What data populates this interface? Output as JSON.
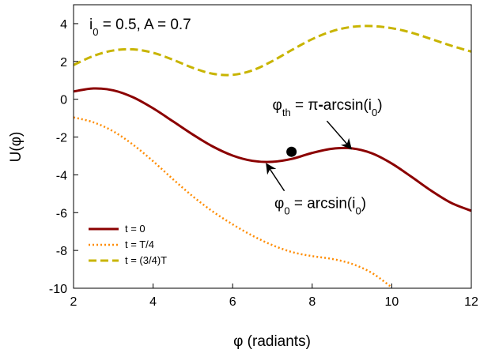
{
  "chart_data": {
    "type": "line",
    "title": "",
    "xlabel": "φ  (radiants)",
    "ylabel": "U(φ)",
    "xlim": [
      2,
      12
    ],
    "ylim": [
      -10,
      5
    ],
    "xticks": [
      2,
      4,
      6,
      8,
      10,
      12
    ],
    "yticks": [
      -10,
      -8,
      -6,
      -4,
      -2,
      0,
      2,
      4
    ],
    "grid": false,
    "legend_position": "bottom-left",
    "params_label": {
      "i_sym": "i",
      "i_sub": "0",
      "rest": " = 0.5, A = 0.7"
    },
    "series": [
      {
        "name": "t = 0",
        "style": "solid",
        "color": "#8b0000",
        "x": [
          2.0,
          2.5,
          3.0,
          3.5,
          4.0,
          4.5,
          5.0,
          5.5,
          6.0,
          6.5,
          7.0,
          7.5,
          8.0,
          8.5,
          9.0,
          9.5,
          10.0,
          10.5,
          11.0,
          11.5,
          12.0
        ],
        "y": [
          0.41,
          0.57,
          0.47,
          0.1,
          -0.48,
          -1.17,
          -1.87,
          -2.5,
          -2.98,
          -3.26,
          -3.31,
          -3.15,
          -2.84,
          -2.62,
          -2.6,
          -2.86,
          -3.4,
          -4.11,
          -4.85,
          -5.49,
          -5.9
        ]
      },
      {
        "name": "t = T/4",
        "style": "dotted",
        "color": "#ff8c00",
        "x": [
          2.0,
          2.5,
          3.0,
          3.5,
          4.0,
          4.5,
          5.0,
          5.5,
          6.0,
          6.5,
          7.0,
          7.5,
          8.0,
          8.5,
          9.0,
          9.5,
          10.0
        ],
        "y": [
          -0.96,
          -1.22,
          -1.7,
          -2.41,
          -3.28,
          -4.23,
          -5.14,
          -5.94,
          -6.62,
          -7.22,
          -7.72,
          -8.09,
          -8.3,
          -8.45,
          -8.71,
          -9.19,
          -9.95
        ]
      },
      {
        "name": "t = (3/4)T",
        "style": "dashed",
        "color": "#c8b400",
        "x": [
          2.0,
          2.5,
          3.0,
          3.5,
          4.0,
          4.5,
          5.0,
          5.5,
          6.0,
          6.5,
          7.0,
          7.5,
          8.0,
          8.5,
          9.0,
          9.5,
          10.0,
          10.5,
          11.0,
          11.5,
          12.0
        ],
        "y": [
          1.81,
          2.29,
          2.58,
          2.64,
          2.46,
          2.09,
          1.66,
          1.35,
          1.29,
          1.53,
          2.02,
          2.62,
          3.18,
          3.6,
          3.83,
          3.87,
          3.76,
          3.52,
          3.18,
          2.83,
          2.52
        ]
      }
    ],
    "marker_point": {
      "x": 7.48,
      "y": -2.78
    },
    "annotations": [
      {
        "sym": "φ",
        "sub": "th",
        "eq": " = ",
        "pi": "π",
        "dash": "-",
        "fn": "arcsin(i",
        "fn_sub": "0",
        "close": ")",
        "text_at": [
          7.0,
          -0.55
        ],
        "arrow_from": [
          8.37,
          -1.15
        ],
        "arrow_to": [
          8.98,
          -2.62
        ]
      },
      {
        "sym": "φ",
        "sub": "0",
        "eq": " = ",
        "fn": "arcsin(i",
        "fn_sub": "0",
        "close": ")",
        "text_at": [
          7.05,
          -5.75
        ],
        "arrow_from": [
          7.3,
          -4.85
        ],
        "arrow_to": [
          6.85,
          -3.42
        ]
      }
    ]
  }
}
